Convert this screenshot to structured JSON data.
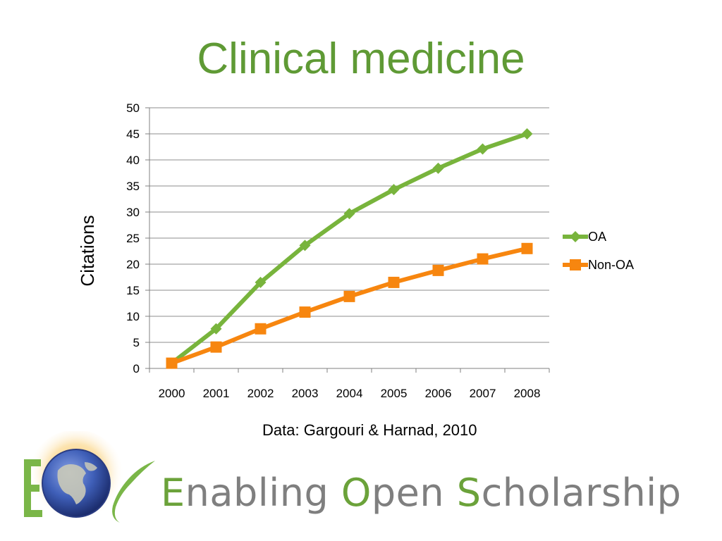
{
  "slide": {
    "title": "Clinical medicine",
    "source_note": "Data: Gargouri & Harnad, 2010"
  },
  "brand": {
    "part1_initial": "E",
    "part1_rest": "nabling ",
    "part2_initial": "O",
    "part2_rest": "pen ",
    "part3_initial": "S",
    "part3_rest": "cholarship",
    "accent_color": "#6ba23a",
    "text_color": "#7f7f7f"
  },
  "colors": {
    "title": "#5f9a35",
    "oa": "#78b43c",
    "non_oa": "#f7860f",
    "grid": "#8c8c8c"
  },
  "chart_data": {
    "type": "line",
    "title": "",
    "xlabel": "",
    "ylabel": "Citations",
    "x": [
      "2000",
      "2001",
      "2002",
      "2003",
      "2004",
      "2005",
      "2006",
      "2007",
      "2008"
    ],
    "ylim": [
      0,
      50
    ],
    "yticks": [
      0,
      5,
      10,
      15,
      20,
      25,
      30,
      35,
      40,
      45,
      50
    ],
    "grid": true,
    "legend": "right",
    "series": [
      {
        "name": "OA",
        "marker": "diamond",
        "color": "#78b43c",
        "values": [
          1,
          7.6,
          16.5,
          23.6,
          29.7,
          34.3,
          38.4,
          42.1,
          45
        ]
      },
      {
        "name": "Non-OA",
        "marker": "square",
        "color": "#f7860f",
        "values": [
          1,
          4.1,
          7.6,
          10.8,
          13.8,
          16.5,
          18.8,
          21,
          23
        ]
      }
    ]
  }
}
